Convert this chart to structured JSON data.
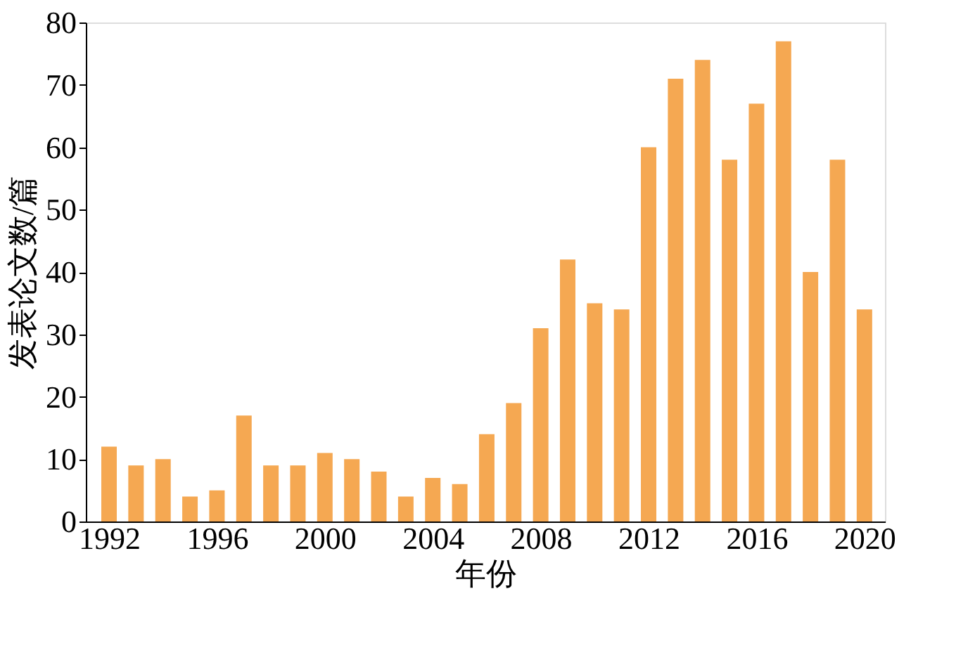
{
  "chart_data": {
    "type": "bar",
    "xlabel": "年份",
    "ylabel": "发表论文数/篇",
    "color": "#f5a852",
    "x": [
      1992,
      1993,
      1994,
      1995,
      1996,
      1997,
      1998,
      1999,
      2000,
      2001,
      2002,
      2003,
      2004,
      2005,
      2006,
      2007,
      2008,
      2009,
      2010,
      2011,
      2012,
      2013,
      2014,
      2015,
      2016,
      2017,
      2018,
      2019,
      2020
    ],
    "values": [
      12,
      9,
      10,
      4,
      5,
      17,
      9,
      9,
      11,
      10,
      8,
      4,
      7,
      6,
      14,
      19,
      31,
      42,
      35,
      34,
      60,
      71,
      74,
      58,
      67,
      77,
      40,
      58,
      34
    ],
    "xlim": [
      1991.4,
      2020.5
    ],
    "xticks": [
      1992,
      1996,
      2000,
      2004,
      2008,
      2012,
      2016,
      2020
    ],
    "ylim": [
      0,
      80
    ],
    "yticks": [
      0,
      10,
      20,
      30,
      40,
      50,
      60,
      70,
      80
    ],
    "grid": false
  }
}
